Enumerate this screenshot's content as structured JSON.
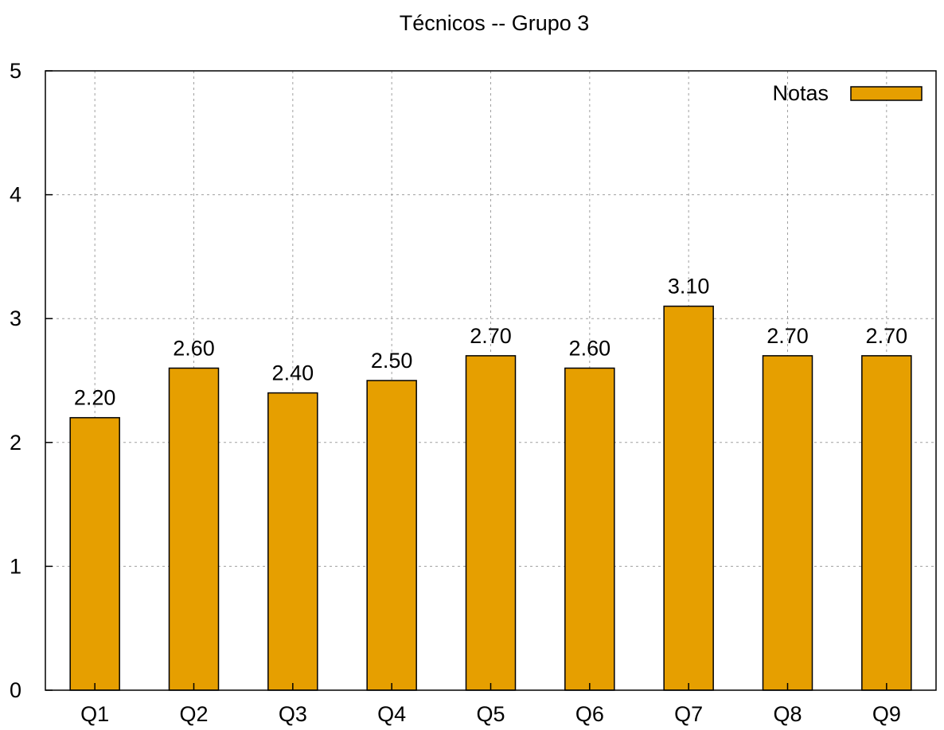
{
  "chart_data": {
    "type": "bar",
    "title": "Técnicos -- Grupo 3",
    "xlabel": "",
    "ylabel": "",
    "categories": [
      "Q1",
      "Q2",
      "Q3",
      "Q4",
      "Q5",
      "Q6",
      "Q7",
      "Q8",
      "Q9"
    ],
    "series": [
      {
        "name": "Notas",
        "color": "#e69f00",
        "values": [
          2.2,
          2.6,
          2.4,
          2.5,
          2.7,
          2.6,
          3.1,
          2.7,
          2.7
        ],
        "labels": [
          "2.20",
          "2.60",
          "2.40",
          "2.50",
          "2.70",
          "2.60",
          "3.10",
          "2.70",
          "2.70"
        ]
      }
    ],
    "ylim": [
      0,
      5
    ],
    "yticks": [
      "0",
      "1",
      "2",
      "3",
      "4",
      "5"
    ],
    "grid": true,
    "legend_position": "top-right"
  }
}
